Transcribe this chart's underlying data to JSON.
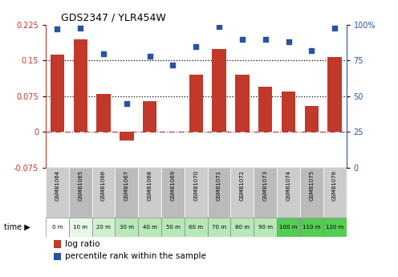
{
  "title": "GDS2347 / YLR454W",
  "samples": [
    "GSM81064",
    "GSM81065",
    "GSM81066",
    "GSM81067",
    "GSM81068",
    "GSM81069",
    "GSM81070",
    "GSM81071",
    "GSM81072",
    "GSM81073",
    "GSM81074",
    "GSM81075",
    "GSM81076"
  ],
  "time_labels": [
    "0 m",
    "10 m",
    "20 m",
    "30 m",
    "40 m",
    "50 m",
    "60 m",
    "70 m",
    "80 m",
    "90 m",
    "100 m",
    "110 m",
    "120 m"
  ],
  "log_ratio": [
    0.163,
    0.195,
    0.08,
    -0.018,
    0.065,
    0.0,
    0.12,
    0.175,
    0.12,
    0.095,
    0.085,
    0.055,
    0.157
  ],
  "percentile_rank": [
    97,
    98,
    80,
    45,
    78,
    72,
    85,
    99,
    90,
    90,
    88,
    82,
    98
  ],
  "bar_color": "#c0392b",
  "dot_color": "#2952a3",
  "ylim_left": [
    -0.075,
    0.225
  ],
  "ylim_right": [
    0,
    100
  ],
  "yticks_left": [
    -0.075,
    0,
    0.075,
    0.15,
    0.225
  ],
  "yticks_right": [
    0,
    25,
    50,
    75,
    100
  ],
  "hlines": [
    0.075,
    0.15
  ],
  "time_colors": [
    "#ffffff",
    "#e8f8e8",
    "#d0f0d0",
    "#b8e8b8",
    "#b8e8b8",
    "#b8e8b8",
    "#b8e8b8",
    "#b8e8b8",
    "#b8e8b8",
    "#b8e8b8",
    "#55cc55",
    "#55cc55",
    "#55cc55"
  ],
  "legend_bar_label": "log ratio",
  "legend_dot_label": "percentile rank within the sample"
}
